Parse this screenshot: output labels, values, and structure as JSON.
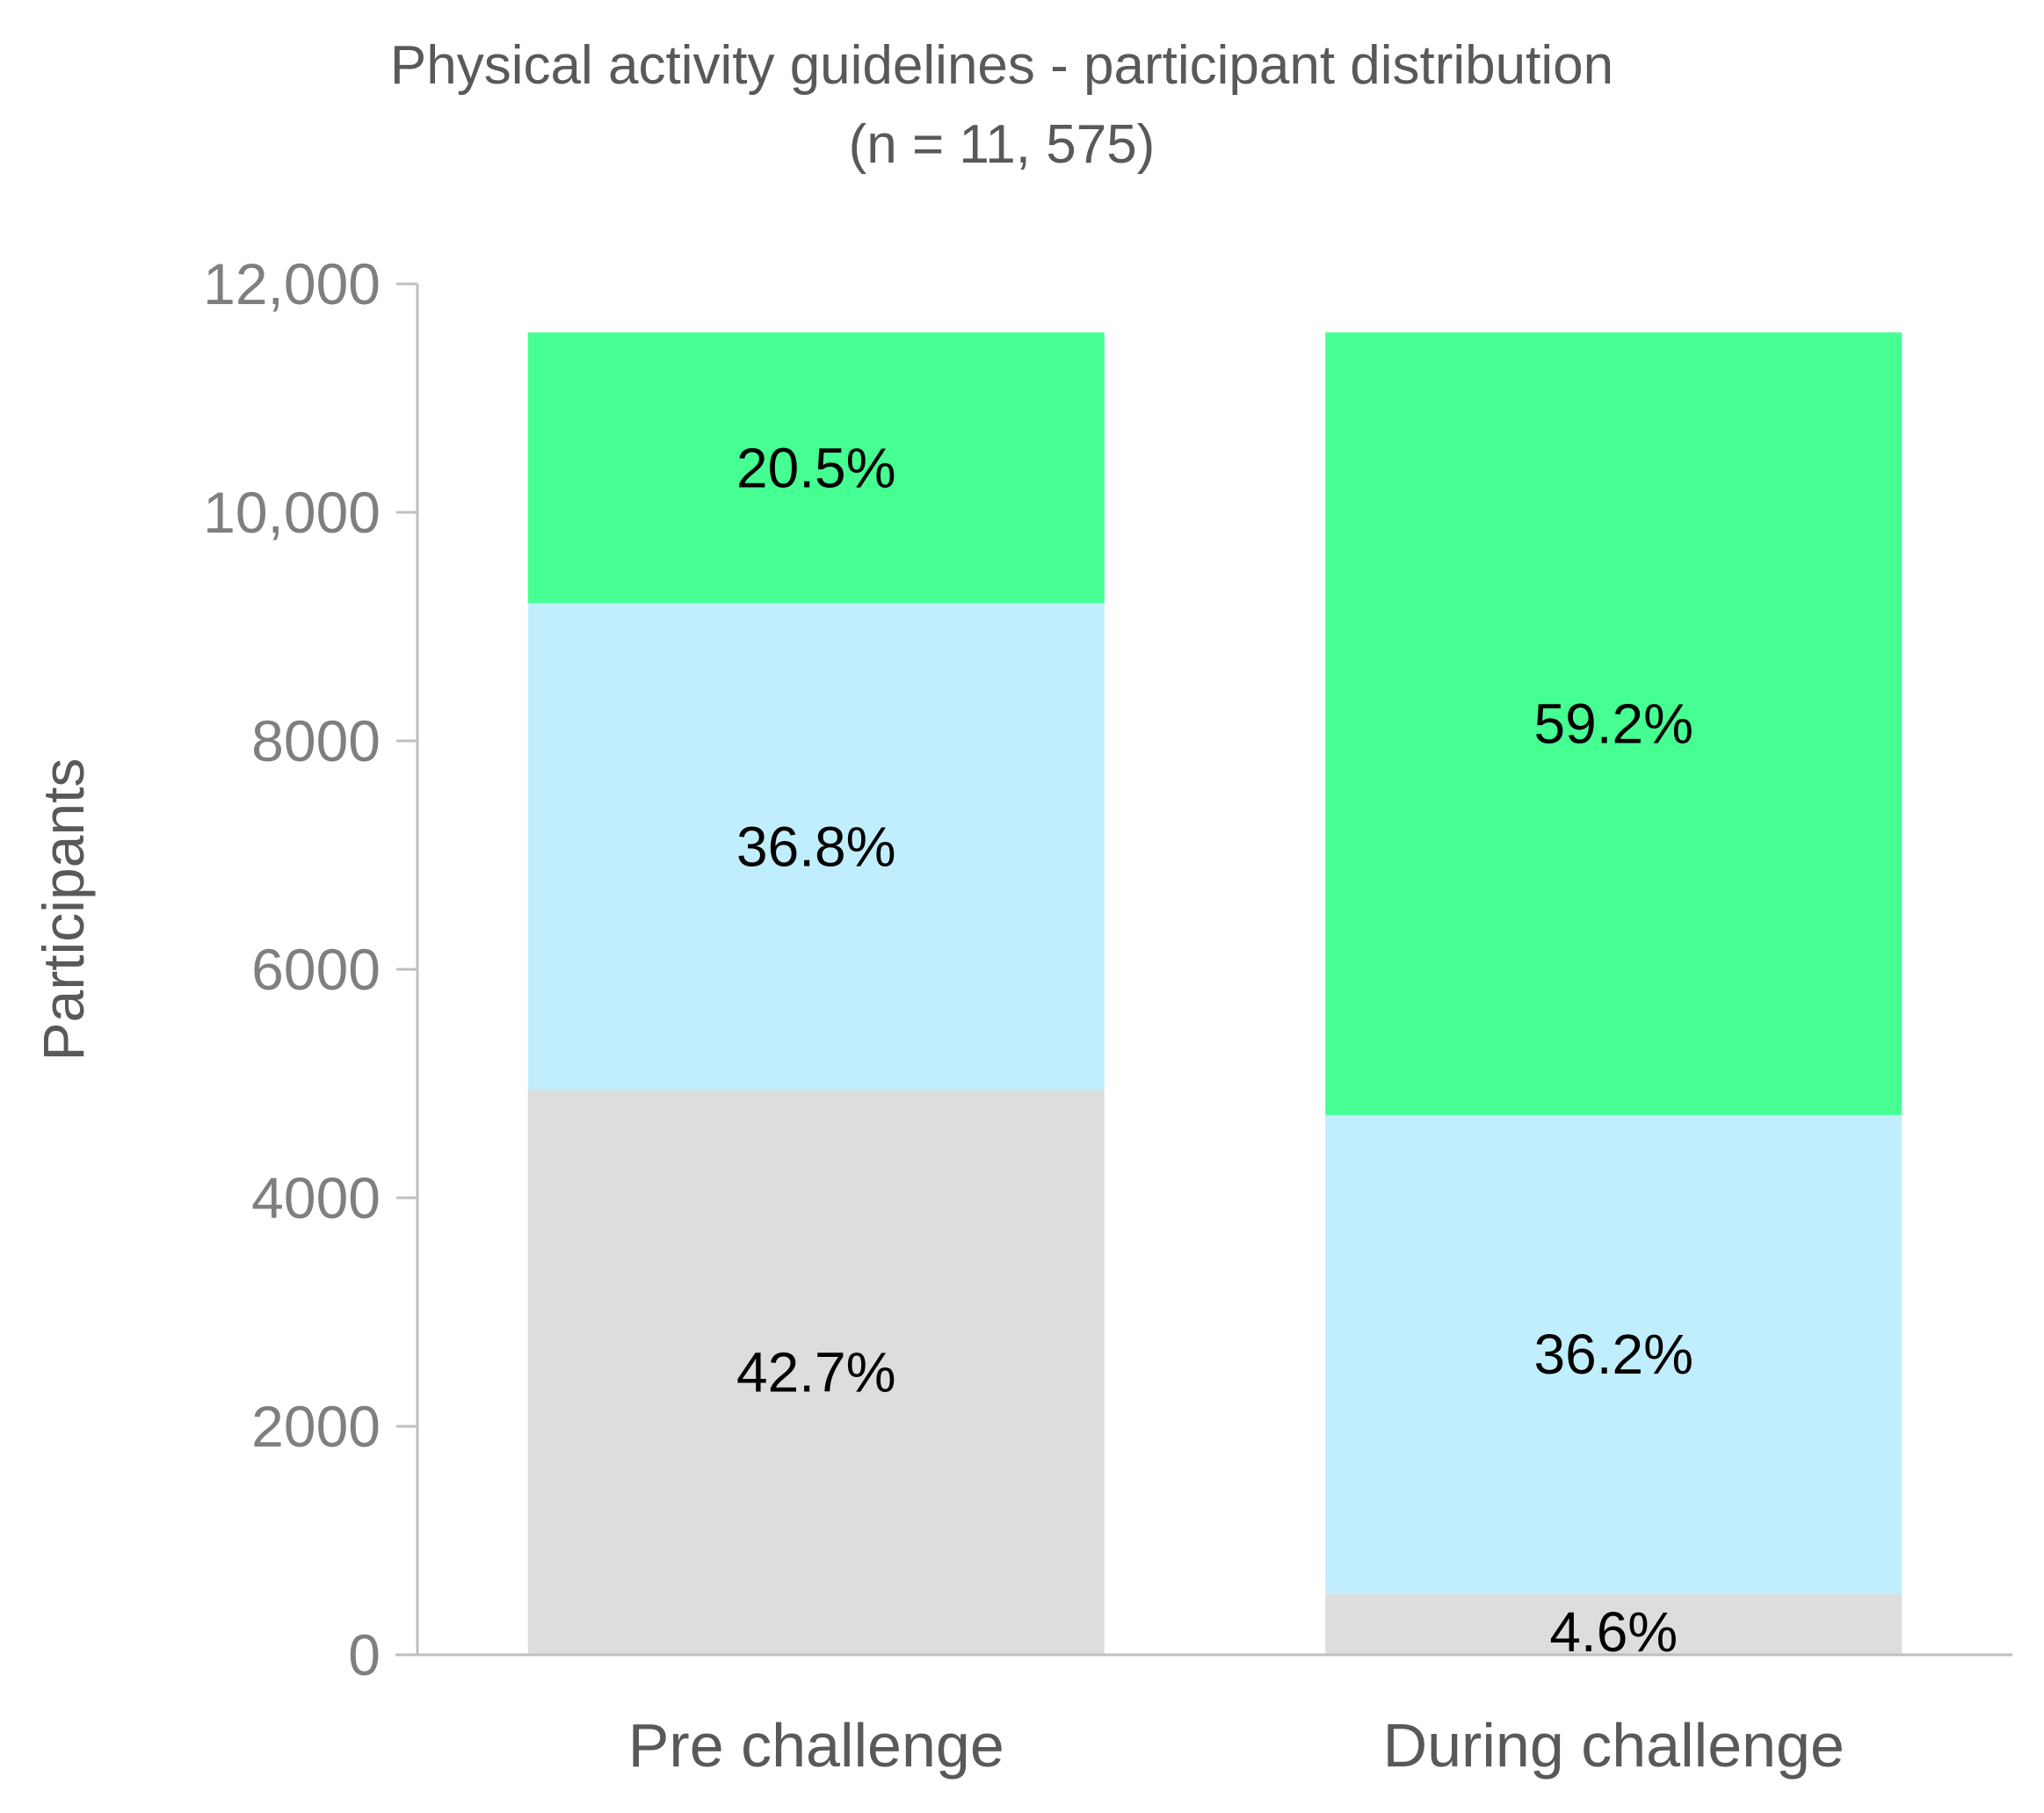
{
  "chart_data": {
    "type": "bar",
    "stacked": true,
    "title": "Physical activity guidelines - participant distribution",
    "subtitle": "(n = 11, 575)",
    "ylabel": "Participants",
    "xlabel": "",
    "ylim": [
      0,
      12000
    ],
    "y_ticks": [
      0,
      2000,
      4000,
      6000,
      8000,
      10000,
      12000
    ],
    "y_tick_labels": [
      "0",
      "2000",
      "4000",
      "6000",
      "8000",
      "10,000",
      "12,000"
    ],
    "categories": [
      "Pre challenge",
      "During challenge"
    ],
    "grid": false,
    "legend": "none",
    "series": [
      {
        "values": [
          4943,
          533
        ],
        "labels": [
          "42.7%",
          "4.6%"
        ],
        "color": "#dddddd"
      },
      {
        "values": [
          4262,
          4192
        ],
        "labels": [
          "36.8%",
          "36.2%"
        ],
        "color": "#c1eefc"
      },
      {
        "values": [
          2370,
          6850
        ],
        "labels": [
          "20.5%",
          "59.2%"
        ],
        "color": "#45ff92"
      }
    ]
  }
}
